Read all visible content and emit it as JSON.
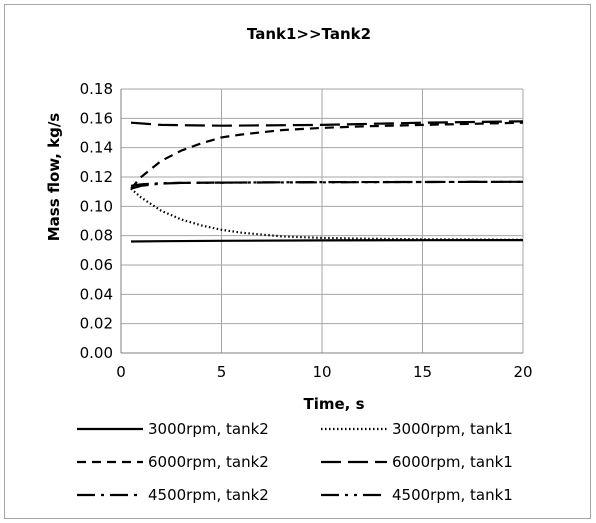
{
  "chart_data": {
    "type": "line",
    "title": "Tank1>>Tank2",
    "xlabel": "Time, s",
    "ylabel": "Mass flow, kg/s",
    "xlim": [
      0,
      20
    ],
    "ylim": [
      0,
      0.18
    ],
    "xticks": [
      0,
      5,
      10,
      15,
      20
    ],
    "xtick_labels": [
      "0",
      "5",
      "10",
      "15",
      "20"
    ],
    "yticks": [
      0,
      0.02,
      0.04,
      0.06,
      0.08,
      0.1,
      0.12,
      0.14,
      0.16,
      0.18
    ],
    "ytick_labels": [
      "0.00",
      "0.02",
      "0.04",
      "0.06",
      "0.08",
      "0.10",
      "0.12",
      "0.14",
      "0.16",
      "0.18"
    ],
    "grid": true,
    "legend_position": "bottom",
    "series": [
      {
        "name": "3000rpm, tank2",
        "dash": "solid",
        "color": "#000000",
        "x": [
          0.5,
          2,
          5,
          10,
          15,
          20
        ],
        "y": [
          0.076,
          0.0762,
          0.0765,
          0.0768,
          0.0769,
          0.077
        ]
      },
      {
        "name": "3000rpm, tank1",
        "dash": "dotted",
        "color": "#000000",
        "x": [
          0.5,
          1,
          2,
          3,
          4,
          5,
          6,
          8,
          10,
          12,
          15,
          20
        ],
        "y": [
          0.112,
          0.106,
          0.097,
          0.091,
          0.087,
          0.084,
          0.082,
          0.0795,
          0.0785,
          0.078,
          0.0775,
          0.0772
        ]
      },
      {
        "name": "6000rpm, tank2",
        "dash": "shortdash",
        "color": "#000000",
        "x": [
          0.5,
          1,
          2,
          3,
          4,
          5,
          6,
          8,
          10,
          12,
          15,
          20
        ],
        "y": [
          0.112,
          0.12,
          0.131,
          0.138,
          0.143,
          0.147,
          0.149,
          0.152,
          0.1535,
          0.1545,
          0.1555,
          0.157
        ]
      },
      {
        "name": "6000rpm, tank1",
        "dash": "longdash",
        "color": "#000000",
        "x": [
          0.5,
          2,
          5,
          10,
          15,
          20
        ],
        "y": [
          0.157,
          0.1555,
          0.155,
          0.1555,
          0.157,
          0.158
        ]
      },
      {
        "name": "4500rpm, tank2",
        "dash": "dashdot",
        "color": "#000000",
        "x": [
          0.5,
          1,
          2,
          3,
          5,
          10,
          15,
          20
        ],
        "y": [
          0.112,
          0.114,
          0.1155,
          0.116,
          0.1162,
          0.1165,
          0.1166,
          0.1167
        ]
      },
      {
        "name": "4500rpm, tank1",
        "dash": "dashdotdot",
        "color": "#000000",
        "x": [
          0.5,
          1,
          2,
          3,
          5,
          10,
          15,
          20
        ],
        "y": [
          0.114,
          0.115,
          0.1158,
          0.116,
          0.1162,
          0.1164,
          0.1166,
          0.1167
        ]
      }
    ]
  }
}
